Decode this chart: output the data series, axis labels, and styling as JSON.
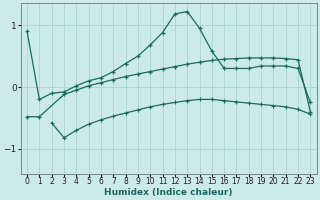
{
  "xlabel": "Humidex (Indice chaleur)",
  "background_color": "#cceae8",
  "grid_color": "#aad4d0",
  "line_color": "#1a6b60",
  "xlim": [
    -0.5,
    23.5
  ],
  "ylim": [
    -1.4,
    1.35
  ],
  "yticks": [
    -1,
    0,
    1
  ],
  "xticks": [
    0,
    1,
    2,
    3,
    4,
    5,
    6,
    7,
    8,
    9,
    10,
    11,
    12,
    13,
    14,
    15,
    16,
    17,
    18,
    19,
    20,
    21,
    22,
    23
  ],
  "line1_x": [
    0,
    1,
    2,
    3,
    4,
    5,
    6,
    7,
    8,
    9,
    10,
    11,
    12,
    13,
    14,
    15,
    16,
    17,
    18,
    19,
    20,
    21,
    22,
    23
  ],
  "line1_y": [
    0.9,
    -0.2,
    -0.1,
    -0.08,
    0.02,
    0.1,
    0.15,
    0.25,
    0.38,
    0.5,
    0.68,
    0.88,
    1.18,
    1.22,
    0.95,
    0.58,
    0.3,
    0.3,
    0.3,
    0.34,
    0.34,
    0.34,
    0.3,
    -0.25
  ],
  "line2_x": [
    0,
    1,
    3,
    4,
    5,
    6,
    7,
    8,
    9,
    10,
    11,
    12,
    13,
    14,
    15,
    16,
    17,
    18,
    19,
    20,
    21,
    22,
    23
  ],
  "line2_y": [
    -0.48,
    -0.48,
    -0.12,
    -0.05,
    0.02,
    0.07,
    0.12,
    0.17,
    0.21,
    0.25,
    0.29,
    0.33,
    0.37,
    0.4,
    0.43,
    0.45,
    0.46,
    0.47,
    0.47,
    0.47,
    0.46,
    0.44,
    -0.4
  ],
  "line3_x": [
    2,
    3,
    4,
    5,
    6,
    7,
    8,
    9,
    10,
    11,
    12,
    13,
    14,
    15,
    16,
    17,
    18,
    19,
    20,
    21,
    22,
    23
  ],
  "line3_y": [
    -0.58,
    -0.82,
    -0.7,
    -0.6,
    -0.53,
    -0.47,
    -0.42,
    -0.37,
    -0.32,
    -0.28,
    -0.25,
    -0.22,
    -0.2,
    -0.2,
    -0.22,
    -0.24,
    -0.26,
    -0.28,
    -0.3,
    -0.32,
    -0.36,
    -0.44
  ]
}
